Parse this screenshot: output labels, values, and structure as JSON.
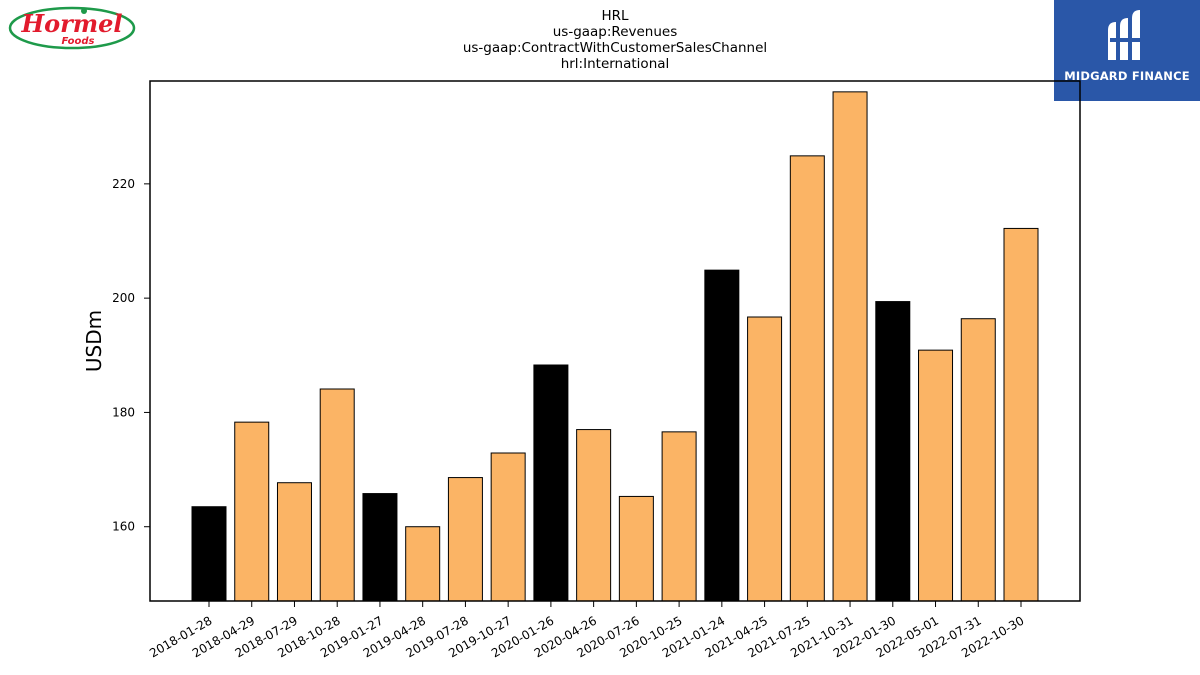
{
  "logos": {
    "left_brand": "Hormel Foods",
    "right_brand": "MIDGARD FINANCE"
  },
  "colors": {
    "highlight_bar": "#000000",
    "regular_bar": "#fbb465",
    "bar_edge": "#000000",
    "right_logo_bg": "#2a57a8",
    "left_logo_red": "#e21b2d",
    "left_logo_green": "#1e9a4a"
  },
  "chart_data": {
    "type": "bar",
    "title_lines": [
      "HRL",
      "us-gaap:Revenues",
      "us-gaap:ContractWithCustomerSalesChannel",
      "hrl:International"
    ],
    "xlabel": "",
    "ylabel": "USDm",
    "ylim": [
      147,
      238
    ],
    "yticks": [
      160,
      180,
      200,
      220
    ],
    "grid": false,
    "legend": "none",
    "categories": [
      "2018-01-28",
      "2018-04-29",
      "2018-07-29",
      "2018-10-28",
      "2019-01-27",
      "2019-04-28",
      "2019-07-28",
      "2019-10-27",
      "2020-01-26",
      "2020-04-26",
      "2020-07-26",
      "2020-10-25",
      "2021-01-24",
      "2021-04-25",
      "2021-07-25",
      "2021-10-31",
      "2022-01-30",
      "2022-05-01",
      "2022-07-31",
      "2022-10-30"
    ],
    "values": [
      163.5,
      178.3,
      167.7,
      184.1,
      165.8,
      160.0,
      168.6,
      172.9,
      188.3,
      177.0,
      165.3,
      176.6,
      204.9,
      196.7,
      224.9,
      236.1,
      199.4,
      190.9,
      196.4,
      212.2
    ],
    "highlight": [
      true,
      false,
      false,
      false,
      true,
      false,
      false,
      false,
      true,
      false,
      false,
      false,
      true,
      false,
      false,
      false,
      true,
      false,
      false,
      false
    ]
  }
}
